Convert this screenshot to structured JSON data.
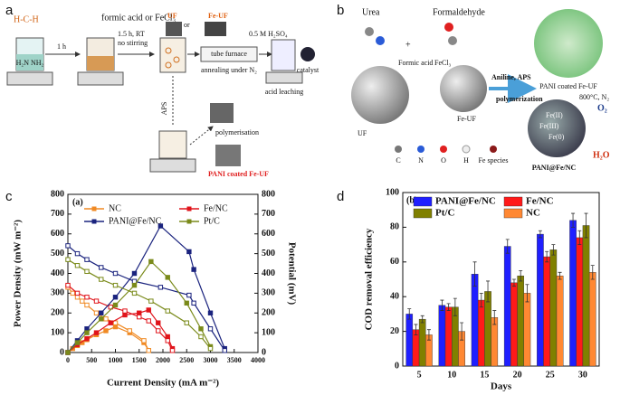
{
  "diagram_a": {
    "panel": "a",
    "formaldehyde_formula": "H-C-H",
    "urea_formula": "H₂N  NH₂",
    "step1_time": "1 h",
    "reagent": "formic acid or FeCl₃",
    "step2_time": "1.5 h, RT",
    "step2_condition": "no stirring",
    "uf": "UF",
    "or": "or",
    "fe_uf": "Fe-UF",
    "furnace": "tube furnace",
    "annealing": "annealing under N₂",
    "acid": "0.5 M H₂SO₄",
    "leaching": "acid leaching",
    "catalyst": "catalyst",
    "aps": "APS",
    "polymerisation": "polymerisation",
    "pani_coated": "PANI coated Fe-UF"
  },
  "diagram_b": {
    "panel": "b",
    "urea": "Urea",
    "formaldehyde": "Formaldehyde",
    "formic_acid": "Formic acid",
    "fecl3": "FeCl₃",
    "uf": "UF",
    "fe_uf": "Fe-UF",
    "aniline": "Aniline, APS",
    "polymerization": "polymerization",
    "pani_coated": "PANI coated Fe-UF",
    "anneal": "800°C, N₂",
    "fe2": "Fe(II)",
    "fe3": "Fe(III)",
    "fe0": "Fe(0)",
    "product": "PANI@Fe/NC",
    "o2": "O₂",
    "h2o": "H₂O",
    "legend": [
      "C",
      "N",
      "O",
      "H",
      "Fe species"
    ]
  },
  "chart_data": [
    {
      "type": "line",
      "panel": "c",
      "subtitle": "(a)",
      "x_label": "Current Density (mA m⁻²)",
      "y_label": "Power Density (mW m⁻²)",
      "y2_label": "Potential (mV)",
      "xlim": [
        0,
        4000
      ],
      "xticks": [
        0,
        500,
        1000,
        1500,
        2000,
        2500,
        3000,
        3500,
        4000
      ],
      "ylim": [
        0,
        800
      ],
      "yticks": [
        0,
        100,
        200,
        300,
        400,
        500,
        600,
        700,
        800
      ],
      "y2lim": [
        0,
        800
      ],
      "y2ticks": [
        0,
        100,
        200,
        300,
        400,
        500,
        600,
        700,
        800
      ],
      "series": [
        {
          "name": "NC",
          "color": "#f08a24",
          "x": [
            0,
            100,
            200,
            300,
            400,
            600,
            800,
            1000,
            1300,
            1600,
            1700
          ],
          "values": [
            0,
            20,
            35,
            50,
            65,
            90,
            110,
            130,
            100,
            50,
            10
          ],
          "potential": [
            330,
            300,
            280,
            260,
            240,
            200,
            170,
            150,
            110,
            60,
            10
          ]
        },
        {
          "name": "Fe/NC",
          "color": "#e0141b",
          "x": [
            0,
            200,
            400,
            600,
            900,
            1200,
            1500,
            1700,
            1900,
            2100,
            2200
          ],
          "values": [
            0,
            40,
            70,
            100,
            150,
            190,
            200,
            215,
            150,
            80,
            20
          ],
          "potential": [
            340,
            300,
            280,
            260,
            230,
            210,
            180,
            160,
            110,
            60,
            10
          ]
        },
        {
          "name": "PANI@Fe/NC",
          "color": "#1a237e",
          "x": [
            0,
            200,
            400,
            700,
            1000,
            1400,
            1950,
            2550,
            2650,
            3000,
            3300
          ],
          "values": [
            0,
            60,
            120,
            200,
            280,
            400,
            640,
            510,
            420,
            200,
            20
          ],
          "potential": [
            540,
            500,
            470,
            430,
            400,
            360,
            330,
            290,
            250,
            120,
            10
          ]
        },
        {
          "name": "Pt/C",
          "color": "#7a8a1a",
          "x": [
            0,
            200,
            400,
            700,
            1000,
            1400,
            1750,
            2100,
            2500,
            2800,
            3000
          ],
          "values": [
            0,
            50,
            100,
            170,
            240,
            340,
            460,
            380,
            250,
            120,
            30
          ],
          "potential": [
            470,
            440,
            410,
            370,
            340,
            300,
            260,
            210,
            150,
            80,
            20
          ]
        }
      ]
    },
    {
      "type": "bar",
      "panel": "d",
      "subtitle": "(b)",
      "x_label": "Days",
      "y_label": "COD removal efficiency",
      "categories": [
        "5",
        "10",
        "15",
        "20",
        "25",
        "30"
      ],
      "ylim": [
        0,
        100
      ],
      "yticks": [
        0,
        20,
        40,
        60,
        80,
        100
      ],
      "series": [
        {
          "name": "PANI@Fe/NC",
          "color": "#1f1fff",
          "values": [
            30,
            35,
            53,
            69,
            76,
            84
          ],
          "errors": [
            3,
            3,
            7,
            4,
            2,
            4
          ]
        },
        {
          "name": "Fe/NC",
          "color": "#ff1a1a",
          "values": [
            21,
            34,
            38,
            48,
            63,
            74
          ],
          "errors": [
            3,
            2,
            4,
            2,
            3,
            4
          ]
        },
        {
          "name": "Pt/C",
          "color": "#808000",
          "values": [
            27,
            34,
            43,
            52,
            67,
            81
          ],
          "errors": [
            2,
            5,
            6,
            3,
            3,
            7
          ]
        },
        {
          "name": "NC",
          "color": "#ff8833",
          "values": [
            18,
            20,
            28,
            42,
            52,
            54
          ],
          "errors": [
            3,
            5,
            4,
            5,
            2,
            4
          ]
        }
      ]
    }
  ]
}
